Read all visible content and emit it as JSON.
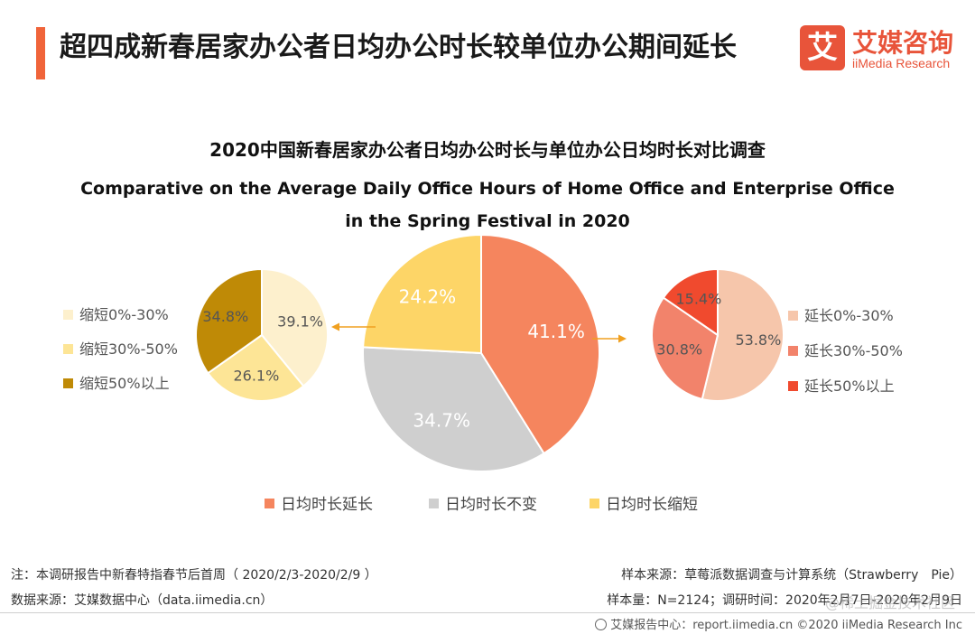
{
  "header": {
    "title": "超四成新春居家办公者日均办公时长较单位办公期间延长",
    "accent_color": "#f0643a"
  },
  "logo": {
    "glyph": "艾",
    "name_cn": "艾媒咨询",
    "name_en": "iiMedia Research",
    "color": "#e8543a"
  },
  "chart_data": {
    "type": "pie",
    "title": "2020中国新春居家办公者日均办公时长与单位办公日均时长对比调查",
    "subtitle_line1": "Comparative on the Average Daily Office Hours of Home Office and Enterprise Office",
    "subtitle_line2": "in the Spring Festival in 2020",
    "main": {
      "slices": [
        {
          "label": "日均时长延长",
          "value": 41.1,
          "display": "41.1%",
          "color": "#f5855e"
        },
        {
          "label": "日均时长不变",
          "value": 34.7,
          "display": "34.7%",
          "color": "#cfcfcf"
        },
        {
          "label": "日均时长缩短",
          "value": 24.2,
          "display": "24.2%",
          "color": "#fdd567"
        }
      ]
    },
    "left_breakdown": {
      "of": "日均时长缩短",
      "slices": [
        {
          "label": "缩短0%-30%",
          "value": 39.1,
          "display": "39.1%",
          "color": "#fdf0cd"
        },
        {
          "label": "缩短30%-50%",
          "value": 26.1,
          "display": "26.1%",
          "color": "#fde596"
        },
        {
          "label": "缩短50%以上",
          "value": 34.8,
          "display": "34.8%",
          "color": "#bf8a06"
        }
      ]
    },
    "right_breakdown": {
      "of": "日均时长延长",
      "slices": [
        {
          "label": "延长0%-30%",
          "value": 53.8,
          "display": "53.8%",
          "color": "#f6c6ab"
        },
        {
          "label": "延长30%-50%",
          "value": 30.8,
          "display": "30.8%",
          "color": "#f2836b"
        },
        {
          "label": "延长50%以上",
          "value": 15.4,
          "display": "15.4%",
          "color": "#f04a2e"
        }
      ]
    },
    "legend_position": "bottom",
    "arrow_color": "#f0a020"
  },
  "footer": {
    "note": "注：本调研报告中新春特指春节后首周（ 2020/2/3-2020/2/9 ）",
    "data_source": "数据来源：艾媒数据中心（data.iimedia.cn）",
    "sample_source": "样本来源：草莓派数据调查与计算系统（Strawberry　Pie）",
    "sample_size": "样本量：N=2124；调研时间：2020年2月7日-2020年2月9日",
    "credit": "艾媒报告中心：report.iimedia.cn ©2020 iiMedia Research Inc",
    "watermark": "@稀土掘金技术社区"
  }
}
